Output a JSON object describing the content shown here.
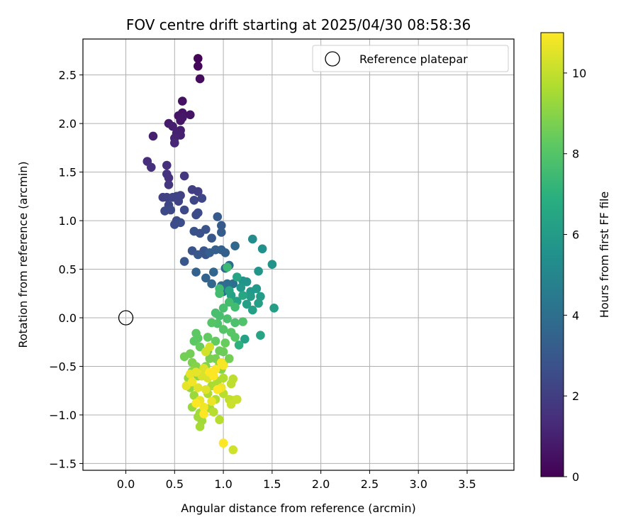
{
  "chart_data": {
    "type": "scatter",
    "title": "FOV centre drift starting at 2025/04/30 08:58:36",
    "xlabel": "Angular distance from reference (arcmin)",
    "ylabel": "Rotation from reference (arcmin)",
    "xlim": [
      -0.44,
      3.98
    ],
    "ylim": [
      -1.57,
      2.87
    ],
    "xticks": [
      0.0,
      0.5,
      1.0,
      1.5,
      2.0,
      2.5,
      3.0,
      3.5
    ],
    "xtick_labels": [
      "0.0",
      "0.5",
      "1.0",
      "1.5",
      "2.0",
      "2.5",
      "3.0",
      "3.5"
    ],
    "yticks": [
      -1.5,
      -1.0,
      -0.5,
      0.0,
      0.5,
      1.0,
      1.5,
      2.0,
      2.5
    ],
    "ytick_labels": [
      "−1.5",
      "−1.0",
      "−0.5",
      "0.0",
      "0.5",
      "1.0",
      "1.5",
      "2.0",
      "2.5"
    ],
    "grid": true,
    "legend": {
      "entries": [
        "Reference platepar"
      ],
      "placement": "top-right"
    },
    "reference_point": {
      "x": 0.0,
      "y": 0.0,
      "label": "Reference platepar"
    },
    "colorbar": {
      "label": "Hours from first FF file",
      "colormap": "viridis",
      "range": [
        0,
        11
      ],
      "ticks": [
        0,
        2,
        4,
        6,
        8,
        10
      ],
      "tick_labels": [
        "0",
        "2",
        "4",
        "6",
        "8",
        "10"
      ]
    },
    "points_columns": [
      "x",
      "y",
      "hours"
    ],
    "points": [
      [
        0.74,
        2.67,
        0.1
      ],
      [
        0.74,
        2.59,
        0.2
      ],
      [
        0.76,
        2.46,
        0.3
      ],
      [
        0.58,
        2.23,
        0.5
      ],
      [
        0.58,
        2.11,
        0.6
      ],
      [
        0.66,
        2.09,
        0.6
      ],
      [
        0.54,
        2.08,
        0.6
      ],
      [
        0.56,
        2.03,
        0.7
      ],
      [
        0.58,
        2.06,
        0.7
      ],
      [
        0.44,
        2.0,
        0.8
      ],
      [
        0.48,
        1.97,
        0.9
      ],
      [
        0.56,
        1.93,
        0.9
      ],
      [
        0.52,
        1.9,
        1.0
      ],
      [
        0.56,
        1.88,
        1.0
      ],
      [
        0.28,
        1.87,
        1.0
      ],
      [
        0.5,
        1.85,
        1.1
      ],
      [
        0.5,
        1.8,
        1.2
      ],
      [
        0.22,
        1.61,
        1.4
      ],
      [
        0.26,
        1.55,
        1.5
      ],
      [
        0.42,
        1.57,
        1.5
      ],
      [
        0.42,
        1.48,
        1.6
      ],
      [
        0.44,
        1.44,
        1.6
      ],
      [
        0.44,
        1.37,
        1.7
      ],
      [
        0.6,
        1.46,
        1.7
      ],
      [
        0.68,
        1.32,
        2.0
      ],
      [
        0.74,
        1.3,
        2.0
      ],
      [
        0.56,
        1.26,
        2.1
      ],
      [
        0.38,
        1.24,
        2.1
      ],
      [
        0.42,
        1.24,
        2.1
      ],
      [
        0.48,
        1.24,
        2.2
      ],
      [
        0.52,
        1.25,
        2.2
      ],
      [
        0.54,
        1.2,
        2.2
      ],
      [
        0.7,
        1.21,
        2.3
      ],
      [
        0.78,
        1.23,
        2.3
      ],
      [
        0.44,
        1.16,
        2.3
      ],
      [
        0.4,
        1.1,
        2.4
      ],
      [
        0.46,
        1.11,
        2.4
      ],
      [
        0.6,
        1.11,
        2.4
      ],
      [
        0.72,
        1.06,
        2.5
      ],
      [
        0.74,
        1.08,
        2.5
      ],
      [
        0.52,
        1.0,
        2.6
      ],
      [
        0.5,
        0.96,
        2.6
      ],
      [
        0.56,
        0.98,
        2.6
      ],
      [
        0.7,
        0.89,
        2.7
      ],
      [
        0.76,
        0.87,
        2.7
      ],
      [
        0.82,
        0.91,
        2.8
      ],
      [
        0.68,
        0.69,
        2.8
      ],
      [
        0.8,
        0.69,
        2.9
      ],
      [
        0.82,
        0.65,
        2.9
      ],
      [
        0.74,
        0.65,
        3.0
      ],
      [
        0.6,
        0.58,
        3.0
      ],
      [
        0.88,
        0.82,
        3.0
      ],
      [
        0.94,
        1.04,
        3.1
      ],
      [
        0.98,
        0.95,
        3.1
      ],
      [
        0.98,
        0.88,
        3.2
      ],
      [
        0.86,
        0.67,
        3.3
      ],
      [
        0.92,
        0.7,
        3.3
      ],
      [
        0.98,
        0.7,
        3.4
      ],
      [
        1.02,
        0.67,
        3.4
      ],
      [
        0.72,
        0.47,
        3.5
      ],
      [
        0.82,
        0.41,
        3.5
      ],
      [
        0.88,
        0.35,
        3.6
      ],
      [
        0.9,
        0.47,
        3.6
      ],
      [
        1.02,
        0.51,
        3.7
      ],
      [
        1.12,
        0.74,
        3.7
      ],
      [
        1.06,
        0.54,
        3.8
      ],
      [
        0.98,
        0.33,
        3.8
      ],
      [
        1.04,
        0.35,
        3.9
      ],
      [
        1.1,
        0.35,
        4.0
      ],
      [
        1.0,
        0.27,
        4.0
      ],
      [
        1.3,
        0.81,
        5.3
      ],
      [
        1.4,
        0.71,
        5.5
      ],
      [
        1.5,
        0.55,
        5.6
      ],
      [
        1.36,
        0.48,
        5.7
      ],
      [
        1.2,
        0.38,
        5.6
      ],
      [
        1.24,
        0.37,
        5.7
      ],
      [
        1.18,
        0.31,
        5.8
      ],
      [
        1.28,
        0.27,
        5.9
      ],
      [
        1.34,
        0.3,
        5.9
      ],
      [
        1.38,
        0.22,
        6.0
      ],
      [
        1.28,
        0.22,
        6.0
      ],
      [
        1.36,
        0.15,
        6.1
      ],
      [
        1.52,
        0.1,
        6.1
      ],
      [
        1.3,
        0.08,
        6.2
      ],
      [
        1.24,
        0.14,
        6.2
      ],
      [
        1.14,
        0.17,
        6.3
      ],
      [
        1.08,
        0.23,
        6.3
      ],
      [
        1.14,
        0.42,
        6.4
      ],
      [
        1.06,
        0.28,
        6.4
      ],
      [
        1.2,
        0.23,
        6.5
      ],
      [
        1.22,
        -0.22,
        6.3
      ],
      [
        1.38,
        -0.18,
        6.4
      ],
      [
        1.16,
        -0.28,
        7.0
      ],
      [
        0.96,
        0.3,
        7.5
      ],
      [
        1.04,
        0.52,
        7.4
      ],
      [
        0.96,
        0.25,
        7.6
      ],
      [
        1.06,
        0.16,
        7.6
      ],
      [
        1.12,
        0.11,
        7.6
      ],
      [
        1.0,
        0.1,
        7.7
      ],
      [
        0.92,
        0.05,
        7.7
      ],
      [
        0.96,
        0.02,
        7.7
      ],
      [
        1.04,
        -0.01,
        7.8
      ],
      [
        1.12,
        -0.05,
        7.8
      ],
      [
        1.2,
        -0.04,
        7.9
      ],
      [
        0.94,
        -0.06,
        7.9
      ],
      [
        0.88,
        -0.05,
        8.0
      ],
      [
        1.0,
        -0.12,
        8.0
      ],
      [
        1.08,
        -0.15,
        8.1
      ],
      [
        1.12,
        -0.2,
        8.1
      ],
      [
        0.72,
        -0.16,
        8.2
      ],
      [
        0.74,
        -0.21,
        8.2
      ],
      [
        0.7,
        -0.24,
        8.2
      ],
      [
        0.84,
        -0.2,
        8.3
      ],
      [
        0.92,
        -0.24,
        8.3
      ],
      [
        1.02,
        -0.26,
        8.4
      ],
      [
        0.76,
        -0.3,
        8.4
      ],
      [
        0.84,
        -0.34,
        8.4
      ],
      [
        0.96,
        -0.34,
        8.5
      ],
      [
        1.0,
        -0.35,
        8.5
      ],
      [
        1.06,
        -0.42,
        8.6
      ],
      [
        0.66,
        -0.37,
        8.6
      ],
      [
        0.6,
        -0.4,
        8.6
      ],
      [
        0.86,
        -0.42,
        8.7
      ],
      [
        0.92,
        -0.42,
        8.7
      ],
      [
        1.0,
        -0.47,
        8.8
      ],
      [
        0.68,
        -0.46,
        8.8
      ],
      [
        0.72,
        -0.5,
        8.9
      ],
      [
        0.82,
        -0.5,
        8.9
      ],
      [
        0.96,
        -0.48,
        9.0
      ],
      [
        0.98,
        -0.53,
        9.0
      ],
      [
        0.74,
        -0.6,
        9.1
      ],
      [
        0.68,
        -0.55,
        9.1
      ],
      [
        0.64,
        -0.62,
        9.2
      ],
      [
        0.66,
        -0.72,
        9.2
      ],
      [
        0.7,
        -0.8,
        9.3
      ],
      [
        0.68,
        -0.92,
        9.3
      ],
      [
        0.76,
        -0.98,
        9.4
      ],
      [
        0.74,
        -1.02,
        9.4
      ],
      [
        0.78,
        -1.06,
        9.4
      ],
      [
        0.76,
        -1.12,
        9.5
      ],
      [
        0.86,
        -0.93,
        9.5
      ],
      [
        0.84,
        -0.78,
        9.6
      ],
      [
        0.88,
        -0.7,
        9.6
      ],
      [
        0.94,
        -0.65,
        9.6
      ],
      [
        1.0,
        -0.62,
        9.7
      ],
      [
        0.92,
        -0.84,
        9.7
      ],
      [
        0.9,
        -0.97,
        9.8
      ],
      [
        0.96,
        -1.05,
        9.8
      ],
      [
        1.0,
        -0.78,
        9.8
      ],
      [
        1.08,
        -0.68,
        9.9
      ],
      [
        1.1,
        -0.63,
        9.9
      ],
      [
        1.06,
        -0.84,
        10.0
      ],
      [
        1.1,
        -0.85,
        10.0
      ],
      [
        1.14,
        -0.84,
        10.1
      ],
      [
        1.08,
        -0.89,
        10.1
      ],
      [
        1.0,
        -1.29,
        10.2
      ],
      [
        1.1,
        -1.36,
        10.2
      ],
      [
        0.82,
        -0.35,
        10.3
      ],
      [
        0.86,
        -0.3,
        10.3
      ],
      [
        0.8,
        -0.52,
        10.4
      ],
      [
        0.78,
        -0.6,
        10.4
      ],
      [
        0.84,
        -0.62,
        10.4
      ],
      [
        0.74,
        -0.72,
        10.5
      ],
      [
        0.82,
        -0.74,
        10.5
      ],
      [
        0.66,
        -0.58,
        10.6
      ],
      [
        0.62,
        -0.7,
        10.6
      ],
      [
        0.72,
        -0.56,
        10.6
      ],
      [
        0.76,
        -0.85,
        10.7
      ],
      [
        0.88,
        -0.86,
        10.7
      ],
      [
        0.8,
        -0.92,
        10.8
      ],
      [
        0.98,
        -0.72,
        10.8
      ],
      [
        0.68,
        -0.66,
        10.8
      ],
      [
        0.98,
        -0.46,
        10.9
      ],
      [
        1.0,
        -0.49,
        10.9
      ],
      [
        0.9,
        -0.6,
        11.0
      ],
      [
        0.72,
        -0.88,
        11.0
      ],
      [
        0.8,
        -0.99,
        11.0
      ],
      [
        1.0,
        -1.29,
        11.0
      ],
      [
        0.86,
        -0.56,
        11.0
      ],
      [
        0.94,
        -0.74,
        11.0
      ],
      [
        0.92,
        -0.53,
        11.0
      ]
    ]
  }
}
